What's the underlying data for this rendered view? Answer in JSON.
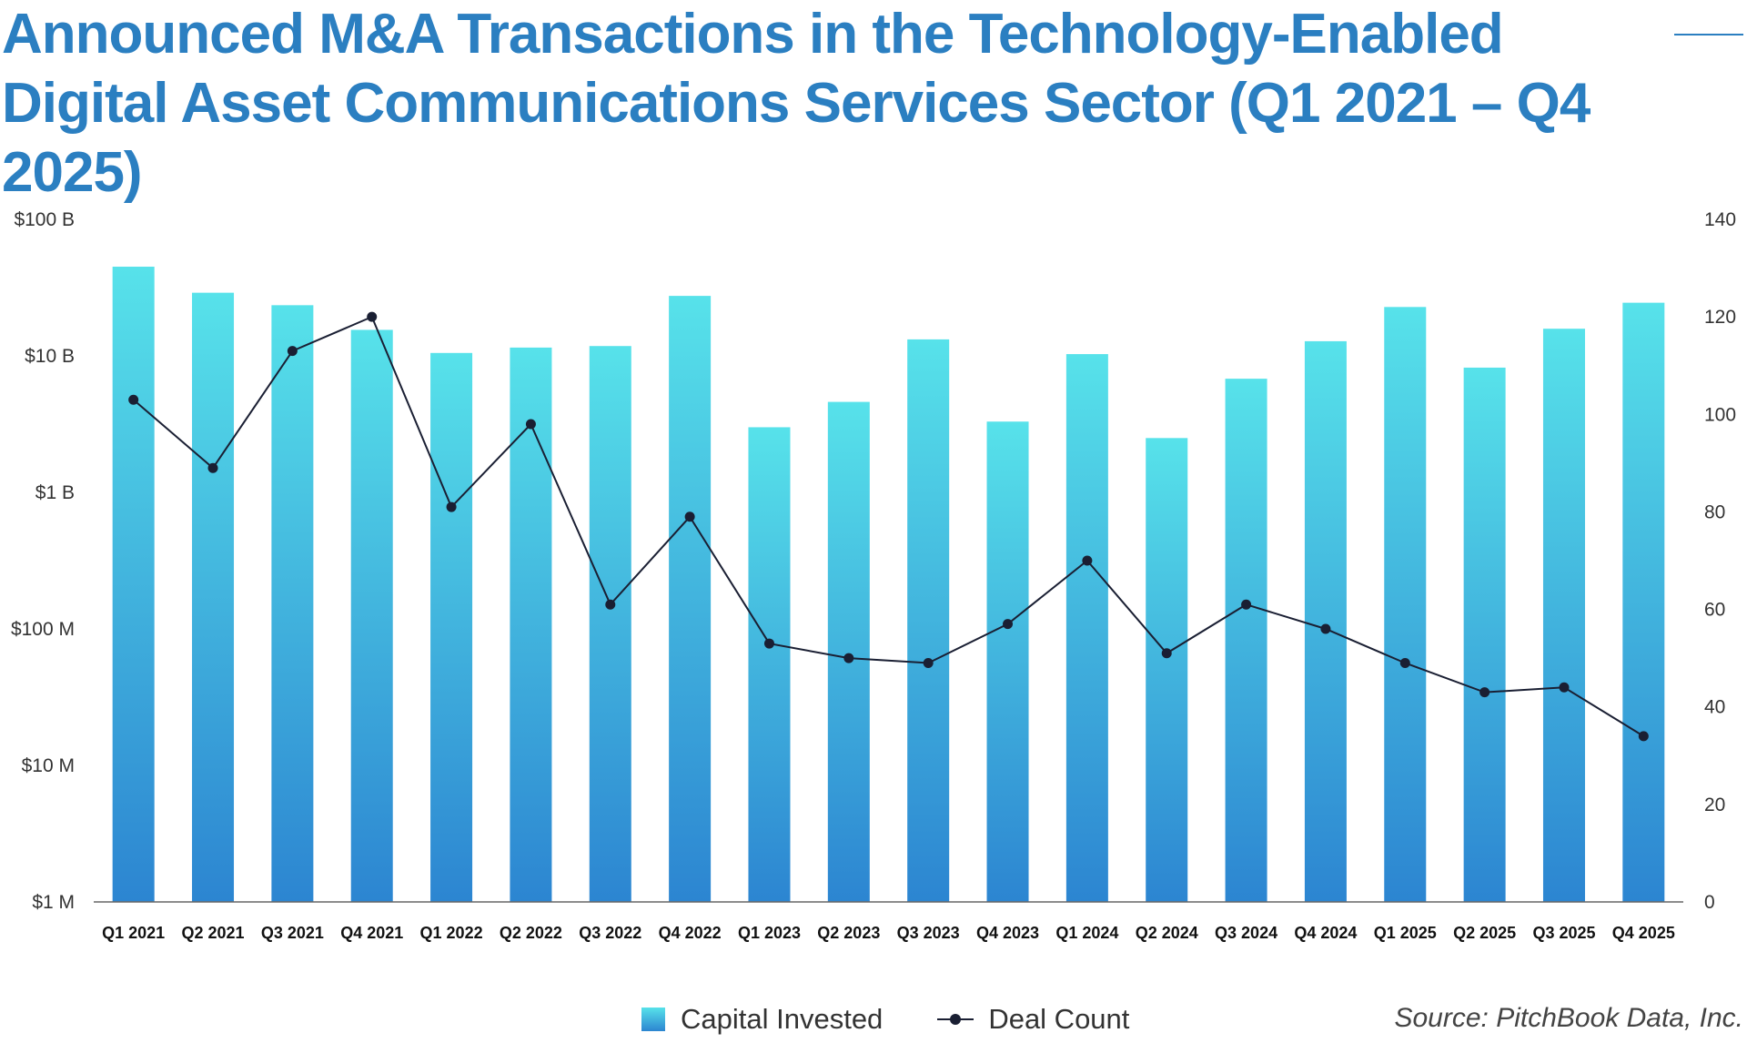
{
  "title": "Announced M&A Transactions in the Technology-Enabled Digital Asset Communications Services Sector (Q1 2021 – Q4 2025)",
  "source": "Source: PitchBook Data, Inc.",
  "colors": {
    "title": "#2b7fc1",
    "bar_top": "#57e2ea",
    "bar_bottom": "#2c85d1",
    "line": "#1a1f33"
  },
  "legend": {
    "bar_label": "Capital Invested",
    "line_label": "Deal Count"
  },
  "chart_data": {
    "type": "bar+line",
    "title": "Announced M&A Transactions in the Technology-Enabled Digital Asset Communications Services Sector (Q1 2021 – Q4 2025)",
    "categories": [
      "Q1 2021",
      "Q2 2021",
      "Q3 2021",
      "Q4 2021",
      "Q1 2022",
      "Q2 2022",
      "Q3 2022",
      "Q4 2022",
      "Q1 2023",
      "Q2 2023",
      "Q3 2023",
      "Q4 2023",
      "Q1 2024",
      "Q2 2024",
      "Q3 2024",
      "Q4 2024",
      "Q1 2025",
      "Q2 2025",
      "Q3 2025",
      "Q4 2025"
    ],
    "series": [
      {
        "name": "Capital Invested",
        "type": "bar",
        "axis": "left",
        "unit": "USD",
        "values": [
          45000000000,
          29000000000,
          23500000000,
          15500000000,
          10500000000,
          11500000000,
          11800000000,
          27500000000,
          3000000000,
          4600000000,
          13200000000,
          3300000000,
          10300000000,
          2500000000,
          6800000000,
          12800000000,
          22800000000,
          8200000000,
          15800000000,
          24500000000
        ]
      },
      {
        "name": "Deal Count",
        "type": "line",
        "axis": "right",
        "values": [
          103,
          89,
          113,
          120,
          81,
          98,
          61,
          79,
          53,
          50,
          49,
          57,
          70,
          51,
          61,
          56,
          49,
          43,
          44,
          34
        ]
      }
    ],
    "y_left": {
      "scale": "log",
      "range": [
        1000000,
        100000000000
      ],
      "tick_values": [
        1000000,
        10000000,
        100000000,
        1000000000,
        10000000000,
        100000000000
      ],
      "tick_labels": [
        "$1 M",
        "$10 M",
        "$100 M",
        "$1 B",
        "$10 B",
        "$100 B"
      ]
    },
    "y_right": {
      "scale": "linear",
      "range": [
        0,
        140
      ],
      "tick_values": [
        0,
        20,
        40,
        60,
        80,
        100,
        120,
        140
      ],
      "tick_labels": [
        "0",
        "20",
        "40",
        "60",
        "80",
        "100",
        "120",
        "140"
      ]
    },
    "grid": false,
    "legend_position": "bottom-center"
  }
}
